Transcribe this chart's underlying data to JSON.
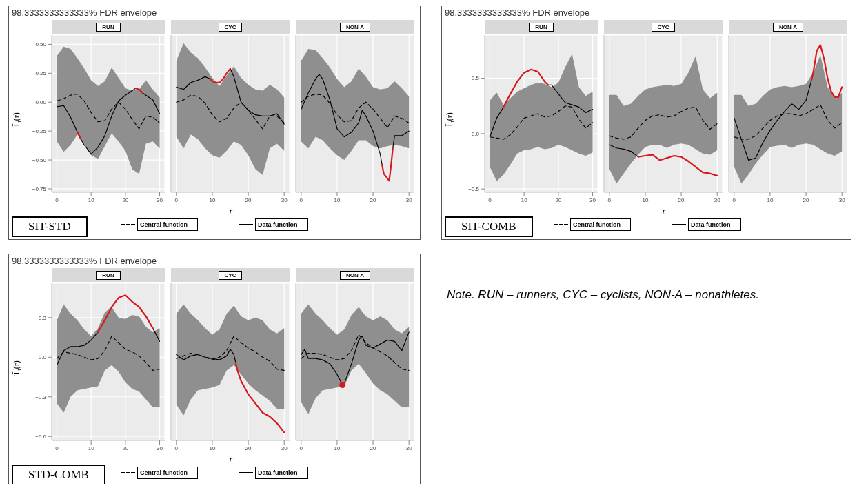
{
  "chart_data": [
    {
      "type": "line",
      "title": "98.3333333333333% FDR envelope",
      "subtitle": "RUN",
      "ylabel": "T̄$_{i}$(r)",
      "annotations": [
        "SIT-STD"
      ],
      "grid": true,
      "xlim": [
        -1.5,
        31.5
      ],
      "xticks": [
        0,
        10,
        20,
        30
      ],
      "ylim": [
        -0.78,
        0.58
      ],
      "yticks": [
        {
          "value": -0.75,
          "label": "−0.75"
        },
        {
          "value": -0.5,
          "label": "−0.50"
        },
        {
          "value": -0.25,
          "label": "−0.25"
        },
        {
          "value": 0,
          "label": "0.00"
        },
        {
          "value": 0.25,
          "label": "0.25"
        },
        {
          "value": 0.5,
          "label": "0.50"
        }
      ],
      "x": [
        0,
        2,
        4,
        6,
        8,
        10,
        12,
        14,
        16,
        18,
        20,
        22,
        24,
        26,
        28,
        30
      ],
      "series": [
        {
          "type": "line",
          "line_style": "dashed",
          "color": "#000000",
          "values": [
            0.01,
            0.03,
            0.06,
            0.07,
            0.01,
            -0.09,
            -0.17,
            -0.16,
            -0.06,
            0.0,
            -0.06,
            -0.15,
            -0.23,
            -0.12,
            -0.13,
            -0.18
          ],
          "lower": [
            -0.34,
            -0.43,
            -0.37,
            -0.28,
            -0.36,
            -0.46,
            -0.49,
            -0.38,
            -0.27,
            -0.34,
            -0.42,
            -0.58,
            -0.62,
            -0.36,
            -0.34,
            -0.4
          ],
          "upper": [
            0.4,
            0.48,
            0.46,
            0.38,
            0.29,
            0.19,
            0.14,
            0.18,
            0.3,
            0.21,
            0.12,
            0.1,
            0.11,
            0.19,
            0.11,
            0.04
          ]
        },
        {
          "type": "line",
          "line_style": "solid",
          "color": "#000000",
          "x": [
            0,
            2,
            4,
            6,
            7,
            8,
            10,
            12,
            14,
            16,
            18,
            20,
            22,
            23,
            24,
            25,
            26,
            28,
            30
          ],
          "values": [
            -0.04,
            -0.03,
            -0.13,
            -0.26,
            -0.32,
            -0.37,
            -0.45,
            -0.39,
            -0.29,
            -0.12,
            0.01,
            0.06,
            0.1,
            0.12,
            null,
            0.08,
            0.06,
            0.02,
            -0.1
          ]
        },
        {
          "type": "line",
          "color": "#d7191c",
          "x": [
            6,
            7
          ],
          "values": [
            -0.26,
            -0.32
          ]
        },
        {
          "type": "line",
          "color": "#d7191c",
          "x": [
            23,
            24,
            25
          ],
          "values": [
            0.12,
            0.11,
            0.08
          ]
        }
      ]
    },
    {
      "type": "line",
      "subtitle": "CYC",
      "xlabel": "r",
      "legend": "bottom",
      "tick_labels": "x",
      "grid": true,
      "xlim": [
        -1.5,
        31.5
      ],
      "xticks": [
        0,
        10,
        20,
        30
      ],
      "ylim": [
        -0.78,
        0.58
      ],
      "yticks": [
        {
          "value": -0.75,
          "label": null
        },
        {
          "value": -0.5,
          "label": null
        },
        {
          "value": -0.25,
          "label": null
        },
        {
          "value": 0,
          "label": null
        },
        {
          "value": 0.25,
          "label": null
        },
        {
          "value": 0.5,
          "label": null
        }
      ],
      "x": [
        0,
        2,
        4,
        6,
        8,
        10,
        12,
        14,
        16,
        18,
        20,
        22,
        24,
        26,
        28,
        30
      ],
      "series": [
        {
          "name": "Central function",
          "type": "line",
          "line_style": "dashed",
          "color": "#000000",
          "values": [
            0.0,
            0.02,
            0.06,
            0.05,
            -0.01,
            -0.11,
            -0.17,
            -0.14,
            -0.05,
            0.0,
            -0.07,
            -0.15,
            -0.23,
            -0.12,
            -0.12,
            -0.18
          ],
          "lower": [
            -0.3,
            -0.4,
            -0.28,
            -0.32,
            -0.4,
            -0.46,
            -0.48,
            -0.42,
            -0.34,
            -0.37,
            -0.46,
            -0.58,
            -0.63,
            -0.4,
            -0.36,
            -0.42
          ],
          "upper": [
            0.36,
            0.51,
            0.43,
            0.38,
            0.3,
            0.21,
            0.14,
            0.23,
            0.31,
            0.21,
            0.15,
            0.11,
            0.1,
            0.15,
            0.11,
            0.04
          ]
        },
        {
          "name": "Data function",
          "type": "line",
          "line_style": "solid",
          "color": "#000000",
          "x": [
            0,
            2,
            4,
            6,
            8,
            9.5,
            10,
            11,
            12,
            13,
            14,
            15,
            16,
            18,
            20,
            22,
            24,
            26,
            28,
            30
          ],
          "values": [
            0.13,
            0.11,
            0.17,
            0.19,
            0.22,
            0.2,
            null,
            null,
            null,
            null,
            null,
            0.29,
            0.22,
            0.0,
            -0.07,
            -0.11,
            -0.12,
            -0.12,
            -0.1,
            -0.19
          ]
        },
        {
          "type": "line",
          "color": "#d7191c",
          "x": [
            9.5,
            10,
            11,
            12,
            13,
            14,
            15
          ],
          "values": [
            0.2,
            0.18,
            0.17,
            0.17,
            0.2,
            0.25,
            0.29
          ]
        }
      ]
    },
    {
      "type": "line",
      "subtitle": "NON-A",
      "tick_labels": "x",
      "grid": true,
      "xlim": [
        -1.5,
        31.5
      ],
      "xticks": [
        0,
        10,
        20,
        30
      ],
      "ylim": [
        -0.78,
        0.58
      ],
      "yticks": [
        {
          "value": -0.75,
          "label": null
        },
        {
          "value": -0.5,
          "label": null
        },
        {
          "value": -0.25,
          "label": null
        },
        {
          "value": 0,
          "label": null
        },
        {
          "value": 0.25,
          "label": null
        },
        {
          "value": 0.5,
          "label": null
        }
      ],
      "x": [
        0,
        2,
        4,
        6,
        8,
        10,
        12,
        14,
        16,
        18,
        20,
        22,
        24,
        26,
        28,
        30
      ],
      "series": [
        {
          "type": "line",
          "line_style": "dashed",
          "color": "#000000",
          "values": [
            0.0,
            0.05,
            0.07,
            0.06,
            -0.01,
            -0.11,
            -0.17,
            -0.16,
            -0.05,
            0.0,
            -0.06,
            -0.14,
            -0.22,
            -0.12,
            -0.14,
            -0.18
          ],
          "lower": [
            -0.34,
            -0.4,
            -0.3,
            -0.33,
            -0.4,
            -0.46,
            -0.5,
            -0.42,
            -0.33,
            -0.33,
            -0.38,
            -0.4,
            -0.38,
            -0.37,
            -0.38,
            -0.4
          ],
          "upper": [
            0.36,
            0.46,
            0.45,
            0.38,
            0.3,
            0.2,
            0.13,
            0.18,
            0.29,
            0.22,
            0.13,
            0.11,
            0.12,
            0.18,
            0.12,
            0.05
          ]
        },
        {
          "type": "line",
          "line_style": "solid",
          "color": "#000000",
          "x": [
            0,
            2,
            4,
            5,
            6,
            8,
            10,
            12,
            14,
            16,
            17,
            18,
            20,
            22,
            22.5,
            23,
            24,
            24.5,
            25,
            25.5,
            26,
            28,
            30
          ],
          "values": [
            -0.06,
            0.08,
            0.2,
            0.24,
            0.2,
            0.02,
            -0.23,
            -0.3,
            -0.26,
            -0.18,
            -0.07,
            -0.12,
            -0.25,
            -0.45,
            -0.54,
            null,
            null,
            null,
            null,
            -0.4,
            -0.29,
            -0.29,
            -0.25
          ]
        },
        {
          "type": "line",
          "color": "#d7191c",
          "x": [
            22.5,
            23,
            24,
            24.5,
            25,
            25.5
          ],
          "values": [
            -0.54,
            -0.62,
            -0.66,
            -0.68,
            -0.55,
            -0.4
          ]
        }
      ]
    },
    {
      "type": "line",
      "title": "98.3333333333333% FDR envelope",
      "subtitle": "RUN",
      "ylabel": "T̄$_{i}$(r)",
      "annotations": [
        "SIT-COMB"
      ],
      "grid": true,
      "xlim": [
        -1.5,
        31.5
      ],
      "xticks": [
        0,
        10,
        20,
        30
      ],
      "ylim": [
        -0.53,
        0.89
      ],
      "yticks": [
        {
          "value": -0.5,
          "label": "−0.5"
        },
        {
          "value": 0,
          "label": "0.0"
        },
        {
          "value": 0.5,
          "label": "0.5"
        }
      ],
      "x": [
        0,
        2,
        4,
        6,
        8,
        10,
        12,
        14,
        16,
        18,
        20,
        22,
        24,
        26,
        28,
        30
      ],
      "series": [
        {
          "type": "line",
          "line_style": "dashed",
          "color": "#000000",
          "values": [
            -0.03,
            -0.04,
            -0.05,
            -0.01,
            0.06,
            0.14,
            0.16,
            0.18,
            0.15,
            0.16,
            0.2,
            0.25,
            0.24,
            0.13,
            0.05,
            0.1
          ],
          "lower": [
            -0.3,
            -0.43,
            -0.37,
            -0.28,
            -0.18,
            -0.15,
            -0.14,
            -0.12,
            -0.14,
            -0.13,
            -0.1,
            -0.12,
            -0.15,
            -0.18,
            -0.2,
            -0.17
          ],
          "upper": [
            0.3,
            0.37,
            0.26,
            0.32,
            0.38,
            0.41,
            0.44,
            0.46,
            0.45,
            0.42,
            0.46,
            0.6,
            0.72,
            0.42,
            0.34,
            0.38
          ]
        },
        {
          "type": "line",
          "line_style": "solid",
          "color": "#000000",
          "x": [
            0,
            2,
            4,
            6,
            8,
            10,
            12,
            14,
            16,
            17,
            18,
            20,
            22,
            24,
            26,
            28,
            30
          ],
          "values": [
            -0.03,
            0.14,
            0.24,
            null,
            null,
            null,
            null,
            null,
            null,
            0.44,
            0.44,
            0.36,
            0.28,
            0.26,
            0.24,
            0.19,
            0.22
          ]
        },
        {
          "type": "line",
          "color": "#d7191c",
          "x": [
            4,
            6,
            8,
            10,
            12,
            14,
            16,
            17
          ],
          "values": [
            0.24,
            0.36,
            0.47,
            0.55,
            0.58,
            0.56,
            0.47,
            0.44
          ]
        }
      ]
    },
    {
      "type": "line",
      "subtitle": "CYC",
      "xlabel": "r",
      "legend": "bottom",
      "tick_labels": "x",
      "grid": true,
      "xlim": [
        -1.5,
        31.5
      ],
      "xticks": [
        0,
        10,
        20,
        30
      ],
      "ylim": [
        -0.53,
        0.89
      ],
      "yticks": [
        {
          "value": -0.5,
          "label": null
        },
        {
          "value": 0,
          "label": null
        },
        {
          "value": 0.5,
          "label": null
        }
      ],
      "x": [
        0,
        2,
        4,
        6,
        8,
        10,
        12,
        14,
        16,
        18,
        20,
        22,
        24,
        26,
        28,
        30
      ],
      "series": [
        {
          "name": "Central function",
          "type": "line",
          "line_style": "dashed",
          "color": "#000000",
          "values": [
            -0.02,
            -0.04,
            -0.05,
            -0.03,
            0.05,
            0.12,
            0.16,
            0.17,
            0.15,
            0.16,
            0.2,
            0.23,
            0.24,
            0.12,
            0.04,
            0.09
          ],
          "lower": [
            -0.32,
            -0.45,
            -0.36,
            -0.27,
            -0.19,
            -0.12,
            -0.1,
            -0.1,
            -0.13,
            -0.1,
            -0.09,
            -0.1,
            -0.14,
            -0.18,
            -0.19,
            -0.15
          ],
          "upper": [
            0.35,
            0.35,
            0.25,
            0.27,
            0.34,
            0.4,
            0.42,
            0.43,
            0.44,
            0.43,
            0.45,
            0.55,
            0.7,
            0.4,
            0.32,
            0.37
          ]
        },
        {
          "name": "Data function",
          "type": "line",
          "line_style": "solid",
          "color": "#000000",
          "x": [
            0,
            2,
            4,
            6,
            8
          ],
          "values": [
            -0.1,
            -0.13,
            -0.14,
            -0.16,
            -0.21
          ]
        },
        {
          "type": "line",
          "color": "#d7191c",
          "x": [
            8,
            10,
            12,
            14,
            16,
            18,
            20,
            22,
            24,
            26,
            28,
            30
          ],
          "values": [
            -0.21,
            -0.2,
            -0.19,
            -0.24,
            -0.22,
            -0.2,
            -0.21,
            -0.25,
            -0.3,
            -0.35,
            -0.36,
            -0.38
          ]
        }
      ]
    },
    {
      "type": "line",
      "subtitle": "NON-A",
      "tick_labels": "x",
      "grid": true,
      "xlim": [
        -1.5,
        31.5
      ],
      "xticks": [
        0,
        10,
        20,
        30
      ],
      "ylim": [
        -0.53,
        0.89
      ],
      "yticks": [
        {
          "value": -0.5,
          "label": null
        },
        {
          "value": 0,
          "label": null
        },
        {
          "value": 0.5,
          "label": null
        }
      ],
      "x": [
        0,
        2,
        4,
        6,
        8,
        10,
        12,
        14,
        16,
        18,
        20,
        22,
        24,
        26,
        28,
        30
      ],
      "series": [
        {
          "type": "line",
          "line_style": "dashed",
          "color": "#000000",
          "values": [
            -0.03,
            -0.05,
            -0.05,
            -0.02,
            0.05,
            0.12,
            0.16,
            0.18,
            0.18,
            0.16,
            0.18,
            0.22,
            0.26,
            0.12,
            0.05,
            0.1
          ],
          "lower": [
            -0.3,
            -0.45,
            -0.37,
            -0.27,
            -0.19,
            -0.12,
            -0.11,
            -0.1,
            -0.13,
            -0.1,
            -0.09,
            -0.1,
            -0.14,
            -0.18,
            -0.2,
            -0.16
          ],
          "upper": [
            0.35,
            0.35,
            0.25,
            0.27,
            0.34,
            0.4,
            0.42,
            0.43,
            0.42,
            0.43,
            0.45,
            0.55,
            0.71,
            0.42,
            0.32,
            0.37
          ]
        },
        {
          "type": "line",
          "line_style": "solid",
          "color": "#000000",
          "x": [
            0,
            2,
            4,
            6,
            8,
            10,
            12,
            14,
            16,
            18,
            20,
            21.5
          ],
          "values": [
            0.14,
            -0.05,
            -0.24,
            -0.22,
            -0.08,
            0.03,
            0.12,
            0.2,
            0.27,
            0.22,
            0.3,
            0.48
          ]
        },
        {
          "type": "line",
          "color": "#d7191c",
          "x": [
            21.5,
            22,
            23,
            24,
            25,
            26,
            27,
            28,
            29,
            30
          ],
          "values": [
            0.48,
            0.55,
            0.75,
            0.8,
            0.68,
            0.5,
            0.38,
            0.33,
            0.33,
            0.42
          ]
        }
      ]
    },
    {
      "type": "line",
      "title": "98.3333333333333% FDR envelope",
      "subtitle": "RUN",
      "ylabel": "T̄$_{i}$(r)",
      "annotations": [
        "STD-COMB"
      ],
      "grid": true,
      "xlim": [
        -1.5,
        31.5
      ],
      "xticks": [
        0,
        10,
        20,
        30
      ],
      "ylim": [
        -0.63,
        0.56
      ],
      "yticks": [
        {
          "value": -0.6,
          "label": "−0.6"
        },
        {
          "value": -0.3,
          "label": "−0.3"
        },
        {
          "value": 0,
          "label": "0.0"
        },
        {
          "value": 0.3,
          "label": "0.3"
        }
      ],
      "x": [
        0,
        2,
        4,
        6,
        8,
        10,
        12,
        14,
        16,
        18,
        20,
        22,
        24,
        26,
        28,
        30
      ],
      "series": [
        {
          "type": "line",
          "line_style": "dashed",
          "color": "#000000",
          "values": [
            -0.01,
            0.04,
            0.03,
            0.02,
            0.0,
            -0.02,
            -0.01,
            0.05,
            0.16,
            0.11,
            0.06,
            0.04,
            0.01,
            -0.04,
            -0.1,
            -0.09
          ],
          "lower": [
            -0.35,
            -0.42,
            -0.3,
            -0.25,
            -0.24,
            -0.23,
            -0.22,
            -0.1,
            -0.06,
            -0.11,
            -0.19,
            -0.24,
            -0.26,
            -0.32,
            -0.38,
            -0.38
          ],
          "upper": [
            0.28,
            0.4,
            0.33,
            0.28,
            0.21,
            0.16,
            0.22,
            0.34,
            0.38,
            0.3,
            0.29,
            0.32,
            0.31,
            0.23,
            0.19,
            0.22
          ]
        },
        {
          "type": "line",
          "line_style": "solid",
          "color": "#000000",
          "values": [
            -0.06,
            0.05,
            0.08,
            0.08,
            0.09,
            0.13,
            0.19,
            null,
            null,
            null,
            null,
            null,
            null,
            null,
            0.22,
            0.12
          ]
        },
        {
          "type": "line",
          "color": "#d7191c",
          "x": [
            12,
            14,
            16,
            18,
            20,
            22,
            24,
            26,
            28
          ],
          "values": [
            0.19,
            0.28,
            0.38,
            0.45,
            0.47,
            0.42,
            0.38,
            0.31,
            0.22
          ]
        }
      ]
    },
    {
      "type": "line",
      "subtitle": "CYC",
      "xlabel": "r",
      "legend": "bottom",
      "tick_labels": "x",
      "grid": true,
      "xlim": [
        -1.5,
        31.5
      ],
      "xticks": [
        0,
        10,
        20,
        30
      ],
      "ylim": [
        -0.63,
        0.56
      ],
      "yticks": [
        {
          "value": -0.6,
          "label": null
        },
        {
          "value": -0.3,
          "label": null
        },
        {
          "value": 0,
          "label": null
        },
        {
          "value": 0.3,
          "label": null
        }
      ],
      "x": [
        0,
        2,
        4,
        6,
        8,
        10,
        12,
        14,
        16,
        18,
        20,
        22,
        24,
        26,
        28,
        30
      ],
      "series": [
        {
          "name": "Central function",
          "type": "line",
          "line_style": "dashed",
          "color": "#000000",
          "values": [
            -0.01,
            0.01,
            0.03,
            0.02,
            0.0,
            -0.02,
            0.0,
            0.05,
            0.16,
            0.11,
            0.07,
            0.04,
            0.0,
            -0.03,
            -0.09,
            -0.1
          ],
          "lower": [
            -0.36,
            -0.44,
            -0.32,
            -0.25,
            -0.24,
            -0.23,
            -0.21,
            -0.1,
            -0.06,
            -0.13,
            -0.2,
            -0.25,
            -0.29,
            -0.33,
            -0.39,
            -0.39
          ],
          "upper": [
            0.33,
            0.4,
            0.33,
            0.28,
            0.22,
            0.17,
            0.21,
            0.33,
            0.39,
            0.31,
            0.28,
            0.3,
            0.28,
            0.21,
            0.18,
            0.22
          ]
        },
        {
          "name": "Data function",
          "type": "line",
          "line_style": "solid",
          "color": "#000000",
          "x": [
            0,
            2,
            4,
            6,
            8,
            10,
            12,
            14,
            15,
            16,
            16.5
          ],
          "values": [
            0.02,
            -0.02,
            0.01,
            0.02,
            0.0,
            -0.01,
            -0.02,
            0.01,
            0.06,
            0.02,
            -0.04
          ]
        },
        {
          "type": "line",
          "color": "#d7191c",
          "x": [
            16.5,
            17,
            18,
            20,
            22,
            24,
            26,
            28,
            30
          ],
          "values": [
            -0.04,
            -0.1,
            -0.18,
            -0.28,
            -0.35,
            -0.42,
            -0.45,
            -0.5,
            -0.57
          ]
        }
      ]
    },
    {
      "type": "line",
      "subtitle": "NON-A",
      "tick_labels": "x",
      "grid": true,
      "xlim": [
        -1.5,
        31.5
      ],
      "xticks": [
        0,
        10,
        20,
        30
      ],
      "ylim": [
        -0.63,
        0.56
      ],
      "yticks": [
        {
          "value": -0.6,
          "label": null
        },
        {
          "value": -0.3,
          "label": null
        },
        {
          "value": 0,
          "label": null
        },
        {
          "value": 0.3,
          "label": null
        }
      ],
      "x": [
        0,
        2,
        4,
        6,
        8,
        10,
        12,
        14,
        16,
        18,
        20,
        22,
        24,
        26,
        28,
        30
      ],
      "series": [
        {
          "type": "line",
          "line_style": "dashed",
          "color": "#000000",
          "values": [
            -0.01,
            0.03,
            0.03,
            0.02,
            0.0,
            -0.02,
            -0.01,
            0.05,
            0.17,
            0.11,
            0.07,
            0.04,
            0.01,
            -0.04,
            -0.09,
            -0.1
          ],
          "lower": [
            -0.34,
            -0.43,
            -0.31,
            -0.25,
            -0.24,
            -0.23,
            -0.22,
            -0.1,
            -0.05,
            -0.12,
            -0.2,
            -0.25,
            -0.28,
            -0.33,
            -0.38,
            -0.38
          ],
          "upper": [
            0.33,
            0.4,
            0.33,
            0.28,
            0.22,
            0.17,
            0.21,
            0.32,
            0.38,
            0.31,
            0.28,
            0.31,
            0.28,
            0.21,
            0.18,
            0.23
          ]
        },
        {
          "type": "line",
          "line_style": "solid",
          "color": "#000000",
          "x": [
            0,
            1,
            2,
            4,
            6,
            8,
            10,
            11.5,
            12,
            14,
            16,
            17,
            18,
            20,
            22,
            24,
            26,
            28,
            30
          ],
          "values": [
            0.02,
            0.06,
            -0.01,
            -0.01,
            -0.02,
            -0.05,
            -0.13,
            -0.21,
            -0.2,
            -0.05,
            0.13,
            0.16,
            0.09,
            0.07,
            0.1,
            0.13,
            0.12,
            0.05,
            0.19
          ]
        },
        {
          "type": "scatter",
          "marker": "circle",
          "color": "#d7191c",
          "x": [
            11.5
          ],
          "values": [
            -0.21
          ]
        }
      ]
    },
    {
      "type": "other",
      "annotations": [
        "Note. RUN – runners, CYC – cyclists, NON-A – nonathletes."
      ]
    }
  ]
}
